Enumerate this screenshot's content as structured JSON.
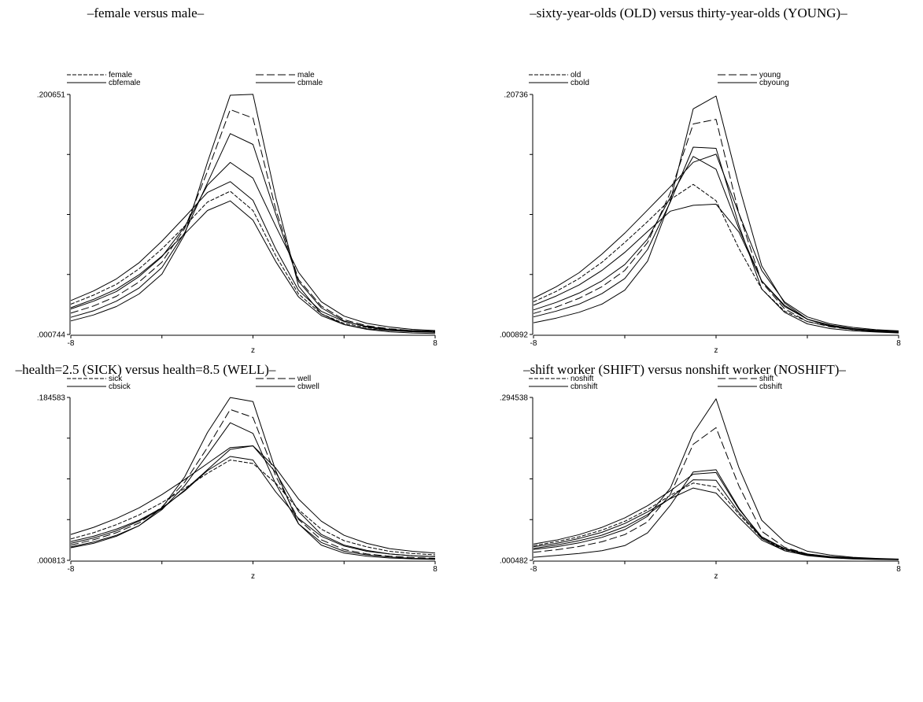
{
  "chart_data": [
    {
      "type": "line",
      "title": "–female versus male–",
      "xlabel": "z",
      "ylabel": "",
      "xlim": [
        -8,
        8
      ],
      "x_ticks": [
        -8,
        8
      ],
      "ylim": [
        0.000744,
        0.200651
      ],
      "y_ticks": [
        0.200651,
        0.000744
      ],
      "x": [
        -8,
        -7,
        -6,
        -5,
        -4,
        -3,
        -2,
        -1,
        0,
        1,
        2,
        3,
        4,
        5,
        6,
        7,
        8
      ],
      "legend": [
        {
          "name": "female",
          "style": "short-dash"
        },
        {
          "name": "male",
          "style": "long-dash"
        },
        {
          "name": "cbfemale",
          "style": "solid"
        },
        {
          "name": "cbmale",
          "style": "solid"
        }
      ],
      "lines": [
        {
          "style": "solid",
          "values": [
            0.029,
            0.037,
            0.047,
            0.0605,
            0.0785,
            0.0985,
            0.119,
            0.128,
            0.1125,
            0.072,
            0.0375,
            0.02,
            0.0115,
            0.0075,
            0.005,
            0.004,
            0.0035
          ]
        },
        {
          "style": "short-dash",
          "values": [
            0.026,
            0.0335,
            0.0425,
            0.0555,
            0.072,
            0.091,
            0.111,
            0.12,
            0.104,
            0.0665,
            0.0345,
            0.018,
            0.01,
            0.0065,
            0.0045,
            0.0035,
            0.003
          ]
        },
        {
          "style": "solid",
          "values": [
            0.023,
            0.03,
            0.0385,
            0.0505,
            0.066,
            0.0845,
            0.104,
            0.112,
            0.096,
            0.0615,
            0.032,
            0.0165,
            0.009,
            0.0055,
            0.004,
            0.003,
            0.0025
          ]
        },
        {
          "style": "solid",
          "values": [
            0.022,
            0.0285,
            0.0365,
            0.049,
            0.0655,
            0.0905,
            0.125,
            0.144,
            0.131,
            0.091,
            0.0525,
            0.028,
            0.016,
            0.01,
            0.007,
            0.005,
            0.004
          ]
        },
        {
          "style": "long-dash",
          "values": [
            0.0185,
            0.0245,
            0.0325,
            0.0445,
            0.061,
            0.089,
            0.1365,
            0.188,
            0.181,
            0.105,
            0.0465,
            0.0245,
            0.013,
            0.008,
            0.0055,
            0.004,
            0.003
          ]
        },
        {
          "style": "solid",
          "values": [
            0.015,
            0.0205,
            0.0285,
            0.0395,
            0.0565,
            0.0855,
            0.127,
            0.168,
            0.159,
            0.101,
            0.045,
            0.023,
            0.012,
            0.007,
            0.0045,
            0.0035,
            0.0025
          ]
        },
        {
          "style": "solid",
          "values": [
            0.012,
            0.017,
            0.024,
            0.0345,
            0.051,
            0.084,
            0.144,
            0.2,
            0.2007,
            0.115,
            0.041,
            0.018,
            0.009,
            0.005,
            0.003,
            0.002,
            0.0015
          ]
        }
      ]
    },
    {
      "type": "line",
      "title": "–sixty-year-olds (OLD) versus thirty-year-olds (YOUNG)–",
      "xlabel": "z",
      "ylabel": "",
      "xlim": [
        -8,
        8
      ],
      "x_ticks": [
        -8,
        8
      ],
      "ylim": [
        0.000892,
        0.20736
      ],
      "y_ticks": [
        0.20736,
        0.000892
      ],
      "x": [
        -8,
        -7,
        -6,
        -5,
        -4,
        -3,
        -2,
        -1,
        0,
        1,
        2,
        3,
        4,
        5,
        6,
        7,
        8
      ],
      "legend": [
        {
          "name": "old",
          "style": "short-dash"
        },
        {
          "name": "young",
          "style": "long-dash"
        },
        {
          "name": "cbold",
          "style": "solid"
        },
        {
          "name": "cbyoung",
          "style": "solid"
        }
      ],
      "lines": [
        {
          "style": "solid",
          "values": [
            0.032,
            0.042,
            0.054,
            0.07,
            0.088,
            0.108,
            0.128,
            0.149,
            0.156,
            0.105,
            0.056,
            0.029,
            0.016,
            0.01,
            0.007,
            0.005,
            0.004
          ]
        },
        {
          "style": "short-dash",
          "values": [
            0.029,
            0.038,
            0.049,
            0.063,
            0.08,
            0.098,
            0.117,
            0.13,
            0.116,
            0.075,
            0.04,
            0.021,
            0.012,
            0.008,
            0.0055,
            0.004,
            0.0035
          ]
        },
        {
          "style": "solid",
          "values": [
            0.026,
            0.034,
            0.0435,
            0.056,
            0.0715,
            0.0895,
            0.107,
            0.112,
            0.113,
            0.089,
            0.047,
            0.026,
            0.014,
            0.009,
            0.006,
            0.0045,
            0.0035
          ]
        },
        {
          "style": "solid",
          "values": [
            0.022,
            0.0285,
            0.0365,
            0.047,
            0.061,
            0.083,
            0.119,
            0.154,
            0.143,
            0.092,
            0.047,
            0.025,
            0.014,
            0.0085,
            0.0055,
            0.004,
            0.003
          ]
        },
        {
          "style": "long-dash",
          "values": [
            0.019,
            0.0245,
            0.032,
            0.042,
            0.056,
            0.08,
            0.123,
            0.182,
            0.186,
            0.105,
            0.046,
            0.023,
            0.012,
            0.0075,
            0.005,
            0.0035,
            0.0028
          ]
        },
        {
          "style": "solid",
          "values": [
            0.016,
            0.021,
            0.027,
            0.036,
            0.049,
            0.074,
            0.115,
            0.162,
            0.161,
            0.095,
            0.04,
            0.02,
            0.01,
            0.006,
            0.004,
            0.003,
            0.0022
          ]
        },
        {
          "style": "solid",
          "values": [
            0.011,
            0.015,
            0.02,
            0.027,
            0.039,
            0.064,
            0.116,
            0.195,
            0.206,
            0.129,
            0.06,
            0.028,
            0.014,
            0.008,
            0.005,
            0.0035,
            0.0025
          ]
        }
      ]
    },
    {
      "type": "line",
      "title": "–health=2.5 (SICK) versus health=8.5 (WELL)–",
      "xlabel": "z",
      "ylabel": "",
      "xlim": [
        -8,
        8
      ],
      "x_ticks": [
        -8,
        8
      ],
      "ylim": [
        0.000813,
        0.184583
      ],
      "y_ticks": [
        0.184583,
        0.000813
      ],
      "x": [
        -8,
        -7,
        -6,
        -5,
        -4,
        -3,
        -2,
        -1,
        0,
        1,
        2,
        3,
        4,
        5,
        6,
        7,
        8
      ],
      "legend": [
        {
          "name": "sick",
          "style": "short-dash"
        },
        {
          "name": "well",
          "style": "long-dash"
        },
        {
          "name": "cbsick",
          "style": "solid"
        },
        {
          "name": "cbwell",
          "style": "solid"
        }
      ],
      "lines": [
        {
          "style": "solid",
          "values": [
            0.03,
            0.038,
            0.048,
            0.06,
            0.075,
            0.092,
            0.11,
            0.128,
            0.13,
            0.105,
            0.07,
            0.045,
            0.029,
            0.02,
            0.014,
            0.011,
            0.009
          ]
        },
        {
          "style": "short-dash",
          "values": [
            0.025,
            0.032,
            0.041,
            0.052,
            0.066,
            0.082,
            0.099,
            0.114,
            0.11,
            0.088,
            0.058,
            0.036,
            0.023,
            0.016,
            0.011,
            0.0085,
            0.007
          ]
        },
        {
          "style": "solid",
          "values": [
            0.022,
            0.028,
            0.036,
            0.046,
            0.06,
            0.079,
            0.102,
            0.118,
            0.114,
            0.078,
            0.048,
            0.028,
            0.017,
            0.011,
            0.008,
            0.006,
            0.005
          ]
        },
        {
          "style": "solid",
          "values": [
            0.02,
            0.026,
            0.034,
            0.045,
            0.059,
            0.08,
            0.103,
            0.126,
            0.13,
            0.1,
            0.056,
            0.03,
            0.018,
            0.012,
            0.008,
            0.006,
            0.005
          ]
        },
        {
          "style": "long-dash",
          "values": [
            0.018,
            0.024,
            0.032,
            0.043,
            0.061,
            0.089,
            0.128,
            0.171,
            0.162,
            0.096,
            0.047,
            0.024,
            0.013,
            0.008,
            0.0055,
            0.004,
            0.003
          ]
        },
        {
          "style": "solid",
          "values": [
            0.016,
            0.0215,
            0.029,
            0.04,
            0.058,
            0.085,
            0.12,
            0.156,
            0.144,
            0.087,
            0.042,
            0.021,
            0.011,
            0.007,
            0.0045,
            0.003,
            0.0025
          ]
        },
        {
          "style": "solid",
          "values": [
            0.015,
            0.02,
            0.028,
            0.04,
            0.06,
            0.095,
            0.145,
            0.1845,
            0.18,
            0.102,
            0.042,
            0.018,
            0.009,
            0.0055,
            0.0035,
            0.0025,
            0.002
          ]
        }
      ]
    },
    {
      "type": "line",
      "title": "–shift worker (SHIFT) versus nonshift worker (NOSHIFT)–",
      "xlabel": "z",
      "ylabel": "",
      "xlim": [
        -8,
        8
      ],
      "x_ticks": [
        -8,
        8
      ],
      "ylim": [
        0.000482,
        0.294538
      ],
      "y_ticks": [
        0.294538,
        0.000482
      ],
      "x": [
        -8,
        -7,
        -6,
        -5,
        -4,
        -3,
        -2,
        -1,
        0,
        1,
        2,
        3,
        4,
        5,
        6,
        7,
        8
      ],
      "legend": [
        {
          "name": "noshift",
          "style": "short-dash"
        },
        {
          "name": "shift",
          "style": "long-dash"
        },
        {
          "name": "cbnshift",
          "style": "solid"
        },
        {
          "name": "cbshift",
          "style": "solid"
        }
      ],
      "lines": [
        {
          "style": "solid",
          "values": [
            0.03,
            0.037,
            0.047,
            0.06,
            0.077,
            0.099,
            0.126,
            0.156,
            0.159,
            0.093,
            0.043,
            0.022,
            0.012,
            0.0075,
            0.005,
            0.0035,
            0.0025
          ]
        },
        {
          "style": "short-dash",
          "values": [
            0.027,
            0.034,
            0.043,
            0.055,
            0.071,
            0.092,
            0.118,
            0.14,
            0.133,
            0.084,
            0.04,
            0.02,
            0.011,
            0.007,
            0.0045,
            0.003,
            0.0022
          ]
        },
        {
          "style": "solid",
          "values": [
            0.025,
            0.031,
            0.04,
            0.051,
            0.067,
            0.088,
            0.112,
            0.131,
            0.122,
            0.078,
            0.037,
            0.018,
            0.01,
            0.006,
            0.004,
            0.0028,
            0.002
          ]
        },
        {
          "style": "solid",
          "values": [
            0.022,
            0.028,
            0.036,
            0.046,
            0.061,
            0.083,
            0.113,
            0.146,
            0.145,
            0.087,
            0.042,
            0.021,
            0.011,
            0.007,
            0.0045,
            0.003,
            0.0022
          ]
        },
        {
          "style": "long-dash",
          "values": [
            0.015,
            0.0195,
            0.0255,
            0.034,
            0.047,
            0.07,
            0.12,
            0.21,
            0.24,
            0.135,
            0.053,
            0.024,
            0.012,
            0.007,
            0.0045,
            0.003,
            0.002
          ]
        },
        {
          "style": "solid",
          "values": [
            0.006,
            0.0095,
            0.013,
            0.018,
            0.027,
            0.05,
            0.1,
            0.16,
            0.164,
            0.095,
            0.04,
            0.018,
            0.009,
            0.005,
            0.003,
            0.002,
            0.0015
          ]
        },
        {
          "style": "solid",
          "values": [
            0.02,
            0.025,
            0.032,
            0.042,
            0.056,
            0.08,
            0.131,
            0.23,
            0.292,
            0.168,
            0.073,
            0.034,
            0.017,
            0.01,
            0.006,
            0.004,
            0.0028
          ]
        }
      ]
    }
  ]
}
